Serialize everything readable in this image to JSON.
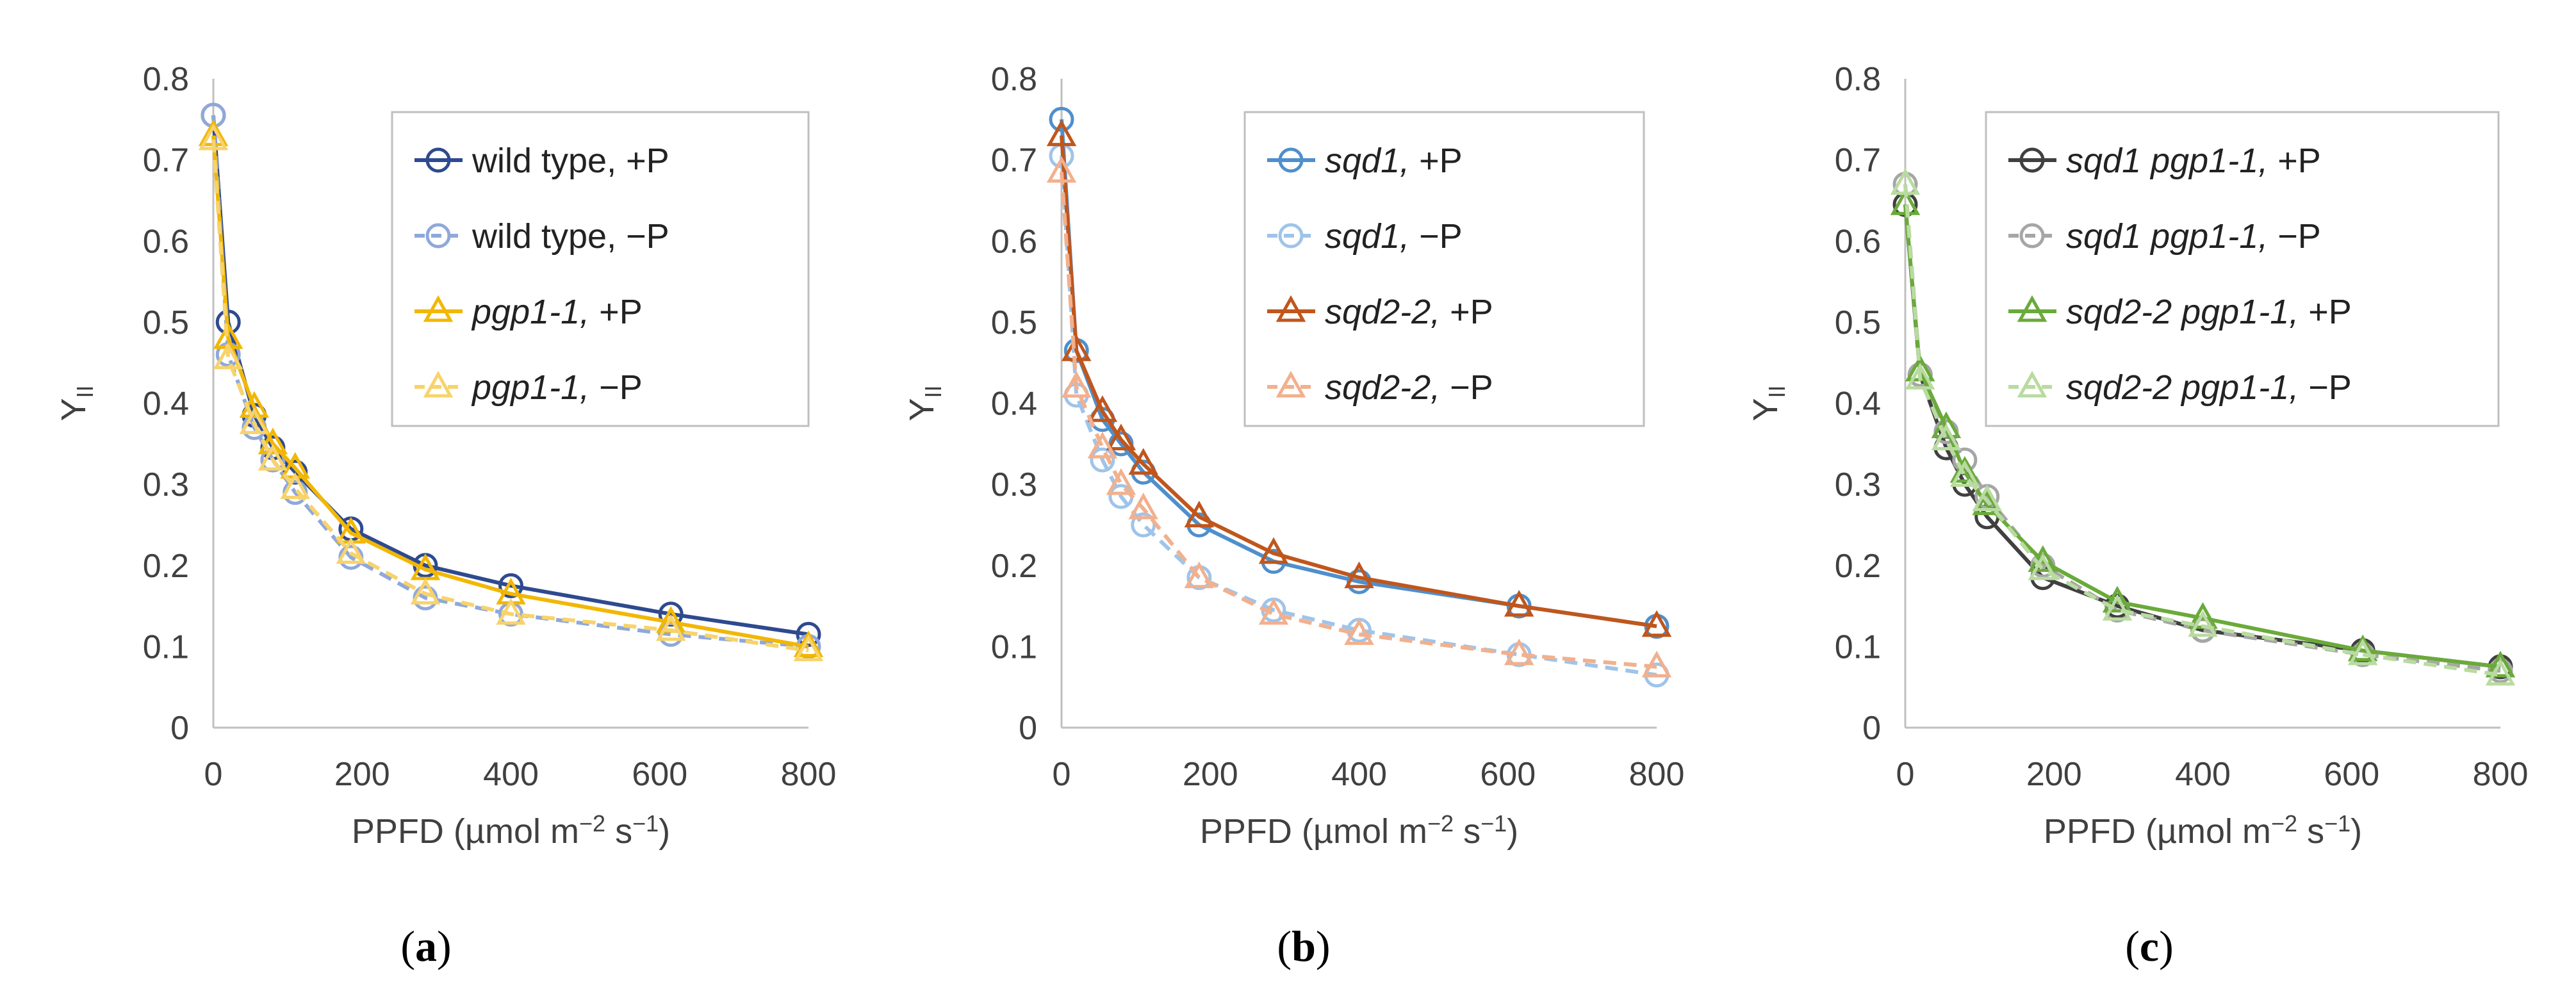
{
  "chart_data": [
    {
      "type": "line",
      "panel_label": "(a)",
      "panel_letter": "a",
      "xlabel": "PPFD (µmol m−2 s−1)",
      "xlabel_parts": {
        "pre": "PPFD (µmol m",
        "sup1": "−2",
        "mid": " s",
        "sup2": "−1",
        "post": ")"
      },
      "ylabel": "YII",
      "ylabel_parts": {
        "main": "Y",
        "sub": "II"
      },
      "xlim": [
        0,
        800
      ],
      "ylim": [
        0,
        0.8
      ],
      "xticks": [
        "0",
        "200",
        "400",
        "600",
        "800"
      ],
      "yticks": [
        "0",
        "0.1",
        "0.2",
        "0.3",
        "0.4",
        "0.5",
        "0.6",
        "0.7",
        "0.8"
      ],
      "legend_position": "top-right",
      "x": [
        0,
        20,
        55,
        80,
        110,
        185,
        285,
        400,
        615,
        800
      ],
      "series": [
        {
          "name": "wild type, +P",
          "label_italic": "",
          "label_plain": "wild type, +P",
          "color": "#2e4a8f",
          "marker": "circle",
          "dash": "solid",
          "values": [
            0.755,
            0.5,
            0.385,
            0.345,
            0.315,
            0.245,
            0.2,
            0.175,
            0.14,
            0.115
          ]
        },
        {
          "name": "wild type, −P",
          "label_italic": "",
          "label_plain": "wild type, −P",
          "color": "#8fa8db",
          "marker": "circle",
          "dash": "dashed",
          "values": [
            0.755,
            0.46,
            0.37,
            0.33,
            0.29,
            0.21,
            0.16,
            0.14,
            0.115,
            0.1
          ]
        },
        {
          "name": "pgp1-1, +P",
          "label_italic": "pgp1-1,",
          "label_plain": " +P",
          "color": "#f2b705",
          "marker": "triangle",
          "dash": "solid",
          "values": [
            0.73,
            0.48,
            0.395,
            0.35,
            0.32,
            0.24,
            0.195,
            0.165,
            0.13,
            0.1
          ]
        },
        {
          "name": "pgp1-1, −P",
          "label_italic": "pgp1-1,",
          "label_plain": " −P",
          "color": "#f7d36b",
          "marker": "triangle",
          "dash": "dashed",
          "values": [
            0.725,
            0.455,
            0.375,
            0.33,
            0.295,
            0.215,
            0.165,
            0.14,
            0.12,
            0.095
          ]
        }
      ]
    },
    {
      "type": "line",
      "panel_label": "(b)",
      "panel_letter": "b",
      "xlabel": "PPFD (µmol m−2 s−1)",
      "xlabel_parts": {
        "pre": "PPFD (µmol m",
        "sup1": "−2",
        "mid": " s",
        "sup2": "−1",
        "post": ")"
      },
      "ylabel": "YII",
      "ylabel_parts": {
        "main": "Y",
        "sub": "II"
      },
      "xlim": [
        0,
        800
      ],
      "ylim": [
        0,
        0.8
      ],
      "xticks": [
        "0",
        "200",
        "400",
        "600",
        "800"
      ],
      "yticks": [
        "0",
        "0.1",
        "0.2",
        "0.3",
        "0.4",
        "0.5",
        "0.6",
        "0.7",
        "0.8"
      ],
      "legend_position": "top-right",
      "x": [
        0,
        20,
        55,
        80,
        110,
        185,
        285,
        400,
        615,
        800
      ],
      "series": [
        {
          "name": "sqd1, +P",
          "label_italic": "sqd1,",
          "label_plain": " +P",
          "color": "#4f8fcc",
          "marker": "circle",
          "dash": "solid",
          "values": [
            0.75,
            0.465,
            0.38,
            0.35,
            0.315,
            0.25,
            0.205,
            0.18,
            0.15,
            0.125
          ]
        },
        {
          "name": "sqd1, −P",
          "label_italic": "sqd1,",
          "label_plain": " −P",
          "color": "#9fc4ea",
          "marker": "circle",
          "dash": "dashed",
          "values": [
            0.705,
            0.41,
            0.33,
            0.285,
            0.25,
            0.185,
            0.145,
            0.12,
            0.09,
            0.065
          ]
        },
        {
          "name": "sqd2-2, +P",
          "label_italic": "sqd2-2,",
          "label_plain": " +P",
          "color": "#c0561c",
          "marker": "triangle",
          "dash": "solid",
          "values": [
            0.73,
            0.465,
            0.39,
            0.355,
            0.325,
            0.26,
            0.215,
            0.185,
            0.15,
            0.125
          ]
        },
        {
          "name": "sqd2-2, −P",
          "label_italic": "sqd2-2,",
          "label_plain": " −P",
          "color": "#f2b08d",
          "marker": "triangle",
          "dash": "dashed",
          "values": [
            0.685,
            0.42,
            0.345,
            0.3,
            0.27,
            0.185,
            0.14,
            0.115,
            0.09,
            0.075
          ]
        }
      ]
    },
    {
      "type": "line",
      "panel_label": "(c)",
      "panel_letter": "c",
      "xlabel": "PPFD (µmol m−2 s−1)",
      "xlabel_parts": {
        "pre": "PPFD (µmol m",
        "sup1": "−2",
        "mid": " s",
        "sup2": "−1",
        "post": ")"
      },
      "ylabel": "YII",
      "ylabel_parts": {
        "main": "Y",
        "sub": "II"
      },
      "xlim": [
        0,
        800
      ],
      "ylim": [
        0,
        0.8
      ],
      "xticks": [
        "0",
        "200",
        "400",
        "600",
        "800"
      ],
      "yticks": [
        "0",
        "0.1",
        "0.2",
        "0.3",
        "0.4",
        "0.5",
        "0.6",
        "0.7",
        "0.8"
      ],
      "legend_position": "top-right",
      "x": [
        0,
        20,
        55,
        80,
        110,
        185,
        285,
        400,
        615,
        800
      ],
      "series": [
        {
          "name": "sqd1 pgp1-1, +P",
          "label_italic": "sqd1 pgp1-1,",
          "label_plain": " +P",
          "color": "#404040",
          "marker": "circle",
          "dash": "solid",
          "values": [
            0.645,
            0.435,
            0.345,
            0.3,
            0.26,
            0.185,
            0.15,
            0.12,
            0.095,
            0.075
          ]
        },
        {
          "name": "sqd1 pgp1-1, −P",
          "label_italic": "sqd1 pgp1-1,",
          "label_plain": " −P",
          "color": "#a6a6a6",
          "marker": "circle",
          "dash": "dashed",
          "values": [
            0.67,
            0.435,
            0.365,
            0.33,
            0.285,
            0.2,
            0.145,
            0.12,
            0.09,
            0.07
          ]
        },
        {
          "name": "sqd2-2 pgp1-1, +P",
          "label_italic": "sqd2-2 pgp1-1,",
          "label_plain": " +P",
          "color": "#6aaa3a",
          "marker": "triangle",
          "dash": "solid",
          "values": [
            0.645,
            0.44,
            0.37,
            0.315,
            0.275,
            0.205,
            0.155,
            0.135,
            0.095,
            0.075
          ]
        },
        {
          "name": "sqd2-2 pgp1-1, −P",
          "label_italic": "sqd2-2 pgp1-1,",
          "label_plain": " −P",
          "color": "#b9dba0",
          "marker": "triangle",
          "dash": "dashed",
          "values": [
            0.67,
            0.43,
            0.355,
            0.31,
            0.28,
            0.195,
            0.145,
            0.125,
            0.09,
            0.065
          ]
        }
      ]
    }
  ]
}
